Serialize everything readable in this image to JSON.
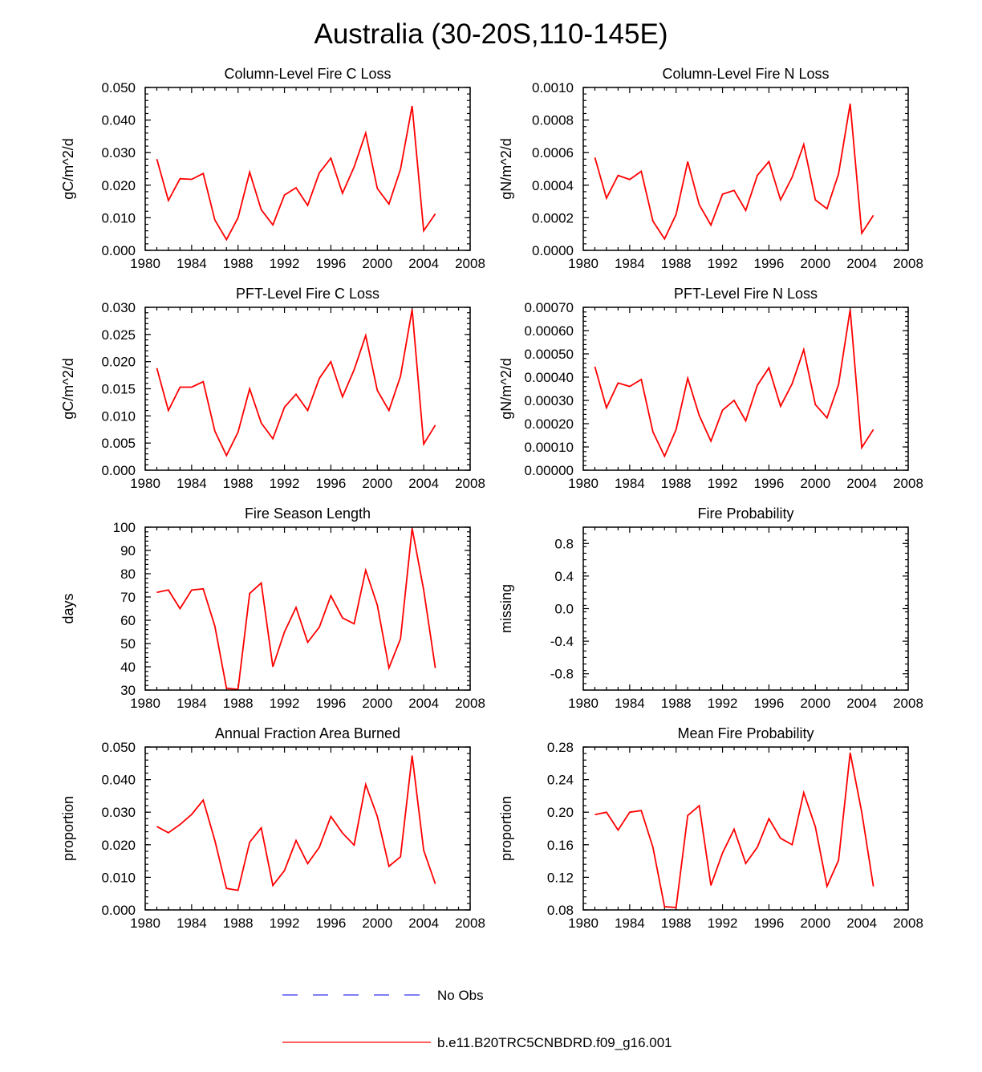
{
  "figure": {
    "title": "Australia (30-20S,110-145E)",
    "series_color": "#ff0000",
    "obs_color": "#3333ee"
  },
  "legend": {
    "entries": [
      {
        "label": "No Obs",
        "style": "dashed",
        "color": "#3333ee"
      },
      {
        "label": "b.e11.B20TRC5CNBDRD.f09_g16.001",
        "style": "solid",
        "color": "#ff0000"
      }
    ]
  },
  "chart_data": [
    {
      "type": "line",
      "title": "Column-Level Fire C Loss",
      "ylabel": "gC/m^2/d",
      "xlim": [
        1980,
        2008
      ],
      "ylim": [
        0,
        0.05
      ],
      "xticks": [
        "1980",
        "1984",
        "1988",
        "1992",
        "1996",
        "2000",
        "2004",
        "2008"
      ],
      "yticks": [
        "0.000",
        "0.010",
        "0.020",
        "0.030",
        "0.040",
        "0.050"
      ],
      "x": [
        1981,
        1982,
        1983,
        1984,
        1985,
        1986,
        1987,
        1988,
        1989,
        1990,
        1991,
        1992,
        1993,
        1994,
        1995,
        1996,
        1997,
        1998,
        1999,
        2000,
        2001,
        2002,
        2003,
        2004,
        2005
      ],
      "series": [
        {
          "name": "b.e11.B20TRC5CNBDRD.f09_g16.001",
          "values": [
            0.028,
            0.0153,
            0.022,
            0.0218,
            0.0236,
            0.0093,
            0.0033,
            0.01,
            0.024,
            0.0125,
            0.0078,
            0.017,
            0.0192,
            0.0138,
            0.0238,
            0.0283,
            0.0175,
            0.0256,
            0.036,
            0.019,
            0.0142,
            0.0249,
            0.0443,
            0.006,
            0.0112
          ]
        }
      ]
    },
    {
      "type": "line",
      "title": "Column-Level Fire N Loss",
      "ylabel": "gN/m^2/d",
      "xlim": [
        1980,
        2008
      ],
      "ylim": [
        0,
        0.001
      ],
      "xticks": [
        "1980",
        "1984",
        "1988",
        "1992",
        "1996",
        "2000",
        "2004",
        "2008"
      ],
      "yticks": [
        "0.0000",
        "0.0002",
        "0.0004",
        "0.0006",
        "0.0008",
        "0.0010"
      ],
      "x": [
        1981,
        1982,
        1983,
        1984,
        1985,
        1986,
        1987,
        1988,
        1989,
        1990,
        1991,
        1992,
        1993,
        1994,
        1995,
        1996,
        1997,
        1998,
        1999,
        2000,
        2001,
        2002,
        2003,
        2004,
        2005
      ],
      "series": [
        {
          "name": "b.e11.B20TRC5CNBDRD.f09_g16.001",
          "values": [
            0.00057,
            0.00032,
            0.00046,
            0.000435,
            0.000485,
            0.00018,
            7e-05,
            0.00022,
            0.000545,
            0.00028,
            0.000155,
            0.000345,
            0.000368,
            0.000245,
            0.00046,
            0.000545,
            0.00031,
            0.00045,
            0.00065,
            0.00031,
            0.000255,
            0.00047,
            0.0009,
            0.000105,
            0.000215
          ]
        }
      ]
    },
    {
      "type": "line",
      "title": "PFT-Level Fire C Loss",
      "ylabel": "gC/m^2/d",
      "xlim": [
        1980,
        2008
      ],
      "ylim": [
        0,
        0.03
      ],
      "xticks": [
        "1980",
        "1984",
        "1988",
        "1992",
        "1996",
        "2000",
        "2004",
        "2008"
      ],
      "yticks": [
        "0.000",
        "0.005",
        "0.010",
        "0.015",
        "0.020",
        "0.025",
        "0.030"
      ],
      "x": [
        1981,
        1982,
        1983,
        1984,
        1985,
        1986,
        1987,
        1988,
        1989,
        1990,
        1991,
        1992,
        1993,
        1994,
        1995,
        1996,
        1997,
        1998,
        1999,
        2000,
        2001,
        2002,
        2003,
        2004,
        2005
      ],
      "series": [
        {
          "name": "b.e11.B20TRC5CNBDRD.f09_g16.001",
          "values": [
            0.0188,
            0.011,
            0.0153,
            0.0153,
            0.0163,
            0.0072,
            0.0027,
            0.007,
            0.015,
            0.0087,
            0.0058,
            0.0116,
            0.014,
            0.011,
            0.0169,
            0.02,
            0.0135,
            0.0185,
            0.0248,
            0.0147,
            0.011,
            0.0173,
            0.0296,
            0.0048,
            0.0083
          ]
        }
      ]
    },
    {
      "type": "line",
      "title": "PFT-Level Fire N Loss",
      "ylabel": "gN/m^2/d",
      "xlim": [
        1980,
        2008
      ],
      "ylim": [
        0,
        0.0007
      ],
      "xticks": [
        "1980",
        "1984",
        "1988",
        "1992",
        "1996",
        "2000",
        "2004",
        "2008"
      ],
      "yticks": [
        "0.00000",
        "0.00010",
        "0.00020",
        "0.00030",
        "0.00040",
        "0.00050",
        "0.00060",
        "0.00070"
      ],
      "x": [
        1981,
        1982,
        1983,
        1984,
        1985,
        1986,
        1987,
        1988,
        1989,
        1990,
        1991,
        1992,
        1993,
        1994,
        1995,
        1996,
        1997,
        1998,
        1999,
        2000,
        2001,
        2002,
        2003,
        2004,
        2005
      ],
      "series": [
        {
          "name": "b.e11.B20TRC5CNBDRD.f09_g16.001",
          "values": [
            0.000445,
            0.000268,
            0.000375,
            0.00036,
            0.00039,
            0.000165,
            6e-05,
            0.000175,
            0.000395,
            0.000235,
            0.000125,
            0.000258,
            0.0003,
            0.000212,
            0.000365,
            0.00044,
            0.000275,
            0.000372,
            0.000518,
            0.000282,
            0.000225,
            0.000368,
            0.00069,
            9.7e-05,
            0.000175
          ]
        }
      ]
    },
    {
      "type": "line",
      "title": "Fire Season Length",
      "ylabel": "days",
      "xlim": [
        1980,
        2008
      ],
      "ylim": [
        30,
        100
      ],
      "xticks": [
        "1980",
        "1984",
        "1988",
        "1992",
        "1996",
        "2000",
        "2004",
        "2008"
      ],
      "yticks": [
        "30",
        "40",
        "50",
        "60",
        "70",
        "80",
        "90",
        "100"
      ],
      "x": [
        1981,
        1982,
        1983,
        1984,
        1985,
        1986,
        1987,
        1988,
        1989,
        1990,
        1991,
        1992,
        1993,
        1994,
        1995,
        1996,
        1997,
        1998,
        1999,
        2000,
        2001,
        2002,
        2003,
        2004,
        2005
      ],
      "series": [
        {
          "name": "b.e11.B20TRC5CNBDRD.f09_g16.001",
          "values": [
            72,
            73,
            65,
            73,
            73.5,
            57.5,
            30.8,
            30.3,
            71.5,
            76,
            40,
            55,
            65.5,
            50.5,
            57,
            70.5,
            61,
            58.5,
            81.5,
            66.5,
            39.5,
            52,
            99.5,
            73,
            39.5
          ]
        }
      ]
    },
    {
      "type": "line",
      "title": "Fire Probability",
      "ylabel": "missing",
      "xlim": [
        1980,
        2008
      ],
      "ylim": [
        -1,
        1
      ],
      "xticks": [
        "1980",
        "1984",
        "1988",
        "1992",
        "1996",
        "2000",
        "2004",
        "2008"
      ],
      "yticks": [
        "-0.8",
        "-0.4",
        "0.0",
        "0.4",
        "0.8"
      ],
      "ytick_values": [
        -0.8,
        -0.4,
        0,
        0.4,
        0.8
      ],
      "x": [],
      "series": []
    },
    {
      "type": "line",
      "title": "Annual Fraction Area Burned",
      "ylabel": "proportion",
      "xlim": [
        1980,
        2008
      ],
      "ylim": [
        0,
        0.05
      ],
      "xticks": [
        "1980",
        "1984",
        "1988",
        "1992",
        "1996",
        "2000",
        "2004",
        "2008"
      ],
      "yticks": [
        "0.000",
        "0.010",
        "0.020",
        "0.030",
        "0.040",
        "0.050"
      ],
      "x": [
        1981,
        1982,
        1983,
        1984,
        1985,
        1986,
        1987,
        1988,
        1989,
        1990,
        1991,
        1992,
        1993,
        1994,
        1995,
        1996,
        1997,
        1998,
        1999,
        2000,
        2001,
        2002,
        2003,
        2004,
        2005
      ],
      "series": [
        {
          "name": "b.e11.B20TRC5CNBDRD.f09_g16.001",
          "values": [
            0.0256,
            0.0237,
            0.0262,
            0.0293,
            0.0337,
            0.0213,
            0.0066,
            0.006,
            0.0208,
            0.0252,
            0.0075,
            0.0121,
            0.0213,
            0.0142,
            0.0192,
            0.0287,
            0.0236,
            0.0199,
            0.0385,
            0.0287,
            0.0134,
            0.0163,
            0.0474,
            0.0183,
            0.008
          ]
        }
      ]
    },
    {
      "type": "line",
      "title": "Mean Fire Probability",
      "ylabel": "proportion",
      "xlim": [
        1980,
        2008
      ],
      "ylim": [
        0.08,
        0.28
      ],
      "xticks": [
        "1980",
        "1984",
        "1988",
        "1992",
        "1996",
        "2000",
        "2004",
        "2008"
      ],
      "yticks": [
        "0.08",
        "0.12",
        "0.16",
        "0.20",
        "0.24",
        "0.28"
      ],
      "x": [
        1981,
        1982,
        1983,
        1984,
        1985,
        1986,
        1987,
        1988,
        1989,
        1990,
        1991,
        1992,
        1993,
        1994,
        1995,
        1996,
        1997,
        1998,
        1999,
        2000,
        2001,
        2002,
        2003,
        2004,
        2005
      ],
      "series": [
        {
          "name": "b.e11.B20TRC5CNBDRD.f09_g16.001",
          "values": [
            0.197,
            0.2,
            0.178,
            0.2,
            0.202,
            0.157,
            0.084,
            0.083,
            0.196,
            0.208,
            0.11,
            0.15,
            0.179,
            0.137,
            0.157,
            0.192,
            0.168,
            0.16,
            0.224,
            0.182,
            0.109,
            0.141,
            0.273,
            0.2,
            0.109
          ]
        }
      ]
    }
  ]
}
